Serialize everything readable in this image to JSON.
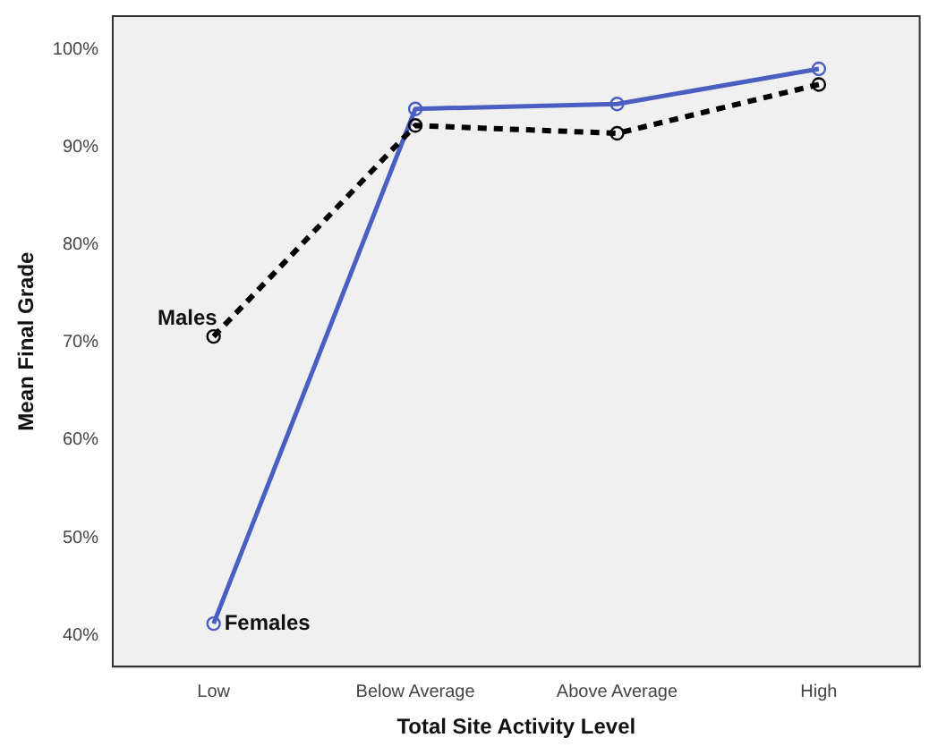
{
  "chart_data": {
    "type": "line",
    "xlabel": "Total Site Activity Level",
    "ylabel": "Mean Final Grade",
    "categories": [
      "Low",
      "Below Average",
      "Above Average",
      "High"
    ],
    "series": [
      {
        "name": "Males",
        "color": "#000000",
        "line_style": "dashed",
        "values": [
          70.6,
          92.2,
          91.4,
          96.4
        ]
      },
      {
        "name": "Females",
        "color": "#4a5fc1",
        "line_style": "solid",
        "values": [
          41.2,
          93.9,
          94.4,
          98.0
        ]
      }
    ],
    "ylim": [
      36.8,
      103.4
    ],
    "yticks": [
      {
        "value": 40,
        "label": "40%"
      },
      {
        "value": 50,
        "label": "50%"
      },
      {
        "value": 60,
        "label": "60%"
      },
      {
        "value": 70,
        "label": "70%"
      },
      {
        "value": 80,
        "label": "80%"
      },
      {
        "value": 90,
        "label": "90%"
      },
      {
        "value": 100,
        "label": "100%"
      }
    ],
    "marker": "circle",
    "grid": false,
    "legend": false
  }
}
